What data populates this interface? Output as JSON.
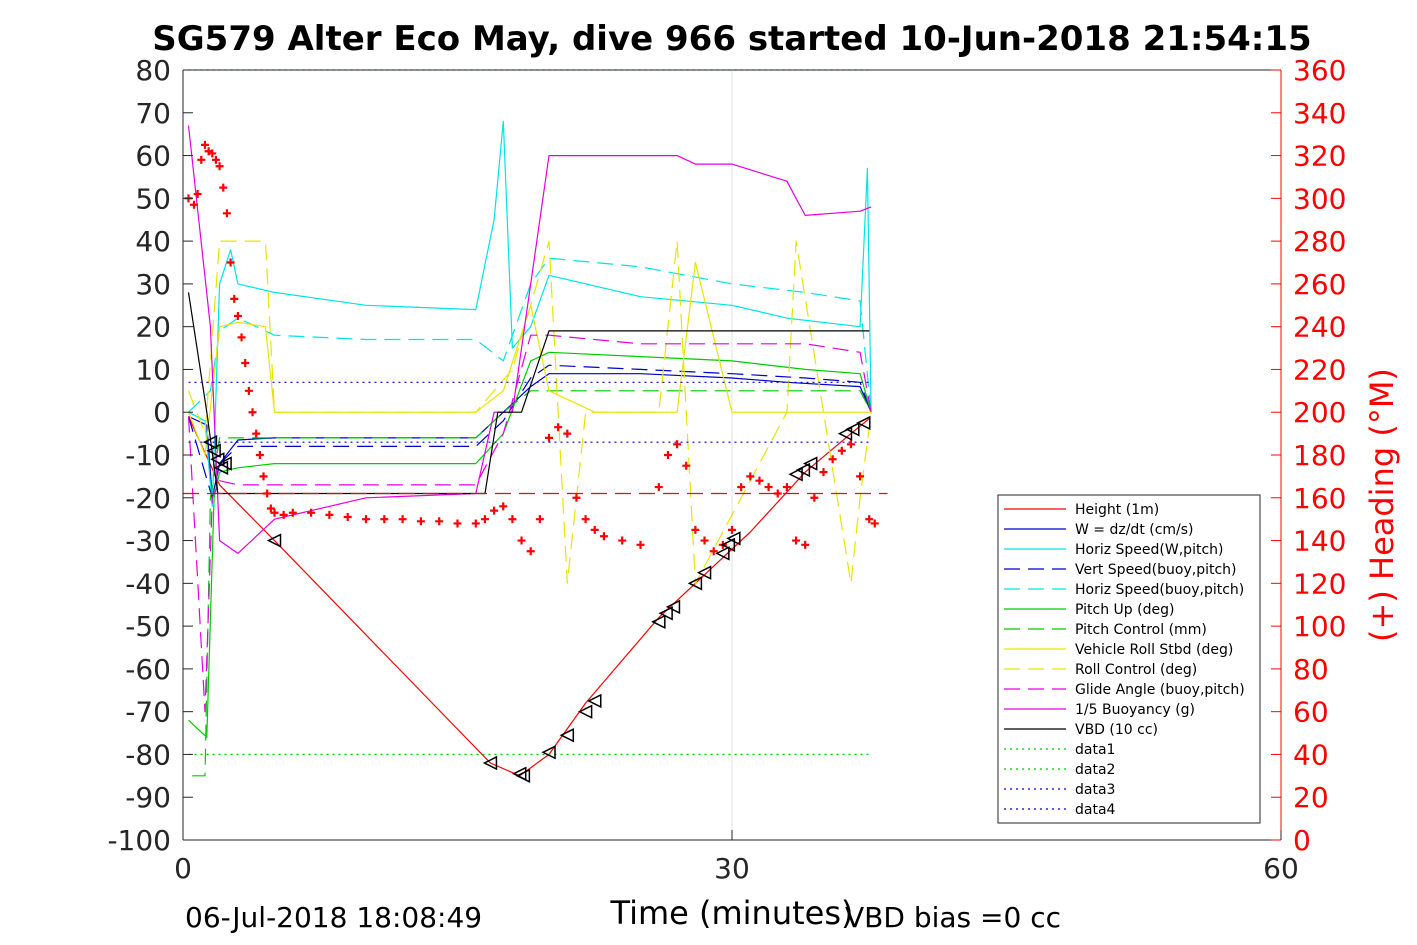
{
  "chart_data": {
    "type": "line",
    "title": "SG579 Alter Eco May, dive 966 started 10-Jun-2018 21:54:15",
    "xlabel": "Time (minutes)",
    "ylabel": "",
    "y2label": "(+) Heading (°M)",
    "xlim": [
      0,
      60
    ],
    "ylim": [
      -100,
      80
    ],
    "y2lim": [
      0,
      360
    ],
    "xticks": [
      "0",
      "30",
      "60"
    ],
    "yticks": [
      "80",
      "70",
      "60",
      "50",
      "40",
      "30",
      "20",
      "10",
      "0",
      "-10",
      "-20",
      "-30",
      "-40",
      "-50",
      "-60",
      "-70",
      "-80",
      "-90",
      "-100"
    ],
    "y2ticks": [
      "360",
      "340",
      "320",
      "300",
      "280",
      "260",
      "240",
      "220",
      "200",
      "180",
      "160",
      "140",
      "120",
      "100",
      "80",
      "60",
      "40",
      "20",
      "0"
    ],
    "grid": "x only",
    "legend_position": "lower-right",
    "footer_left": "06-Jul-2018 18:08:49",
    "footer_right": "VBD bias =0 cc",
    "colors": {
      "heading": "#ff0000",
      "y2axis": "#ff0000"
    },
    "series": [
      {
        "name": "Height (1m)",
        "color": "#ff0000",
        "style": "solid",
        "x": [
          0.3,
          2.0,
          5.0,
          16.8,
          18.4,
          20.0,
          22.0,
          26.0,
          28.5,
          31.0,
          34.0,
          36.5,
          37.5
        ],
        "y": [
          -1.0,
          -17.0,
          -30.0,
          -82.0,
          -85.0,
          -80.0,
          -68.0,
          -48.0,
          -38.0,
          -28.0,
          -14.0,
          -5.0,
          -1.5
        ]
      },
      {
        "name": "W = dz/dt (cm/s)",
        "color": "#0000cc",
        "style": "solid",
        "x": [
          0.3,
          1.3,
          1.6,
          2.0,
          3.0,
          5.0,
          10.0,
          16.0,
          17.0,
          18.0,
          19.0,
          20.0,
          25.0,
          30.0,
          33.0,
          37.0,
          37.6
        ],
        "y": [
          -1.0,
          -3.0,
          -20.0,
          -12.0,
          -6.5,
          -6.0,
          -6.0,
          -6.0,
          -2.0,
          2.0,
          6.0,
          9.0,
          9.0,
          8.0,
          7.0,
          6.0,
          0.0
        ]
      },
      {
        "name": "Horiz Speed(W,pitch)",
        "color": "#00e5e5",
        "style": "solid",
        "x": [
          0.3,
          1.2,
          1.6,
          2.0,
          2.6,
          3.0,
          5.0,
          10.0,
          16.0,
          17.0,
          17.5,
          18.0,
          19.0,
          20.0,
          25.0,
          30.0,
          33.0,
          37.0,
          37.4,
          37.6
        ],
        "y": [
          0.0,
          -2.0,
          -22.0,
          30.0,
          38.0,
          30.0,
          28.0,
          25.0,
          24.0,
          45.0,
          68.0,
          15.0,
          20.0,
          32.0,
          27.0,
          25.0,
          22.0,
          20.0,
          57.0,
          0.0
        ]
      },
      {
        "name": "Vert Speed(buoy,pitch)",
        "color": "#0000cc",
        "style": "dashed",
        "x": [
          0.3,
          1.6,
          2.0,
          3.0,
          10.0,
          16.0,
          17.5,
          19.0,
          20.0,
          25.0,
          30.0,
          34.0,
          37.0,
          37.6
        ],
        "y": [
          -1.0,
          -20.0,
          -12.0,
          -8.0,
          -8.0,
          -8.0,
          -2.0,
          8.0,
          11.0,
          10.0,
          9.0,
          8.0,
          7.0,
          0.0
        ]
      },
      {
        "name": "Horiz Speed(buoy,pitch)",
        "color": "#00e5e5",
        "style": "dashed",
        "x": [
          0.3,
          1.5,
          2.0,
          3.0,
          5.0,
          10.0,
          16.0,
          17.5,
          19.0,
          20.0,
          25.0,
          30.0,
          34.0,
          37.0,
          37.6
        ],
        "y": [
          0.0,
          5.0,
          19.0,
          22.0,
          18.0,
          17.0,
          17.0,
          12.0,
          30.0,
          36.0,
          34.0,
          30.0,
          28.0,
          26.0,
          0.0
        ]
      },
      {
        "name": "Pitch Up (deg)",
        "color": "#00cc00",
        "style": "solid",
        "x": [
          0.3,
          1.3,
          1.7,
          2.0,
          3.0,
          5.0,
          10.0,
          16.0,
          17.5,
          19.0,
          20.0,
          25.0,
          30.0,
          34.0,
          37.0,
          37.6
        ],
        "y": [
          -72.0,
          -76.0,
          -20.0,
          -14.0,
          -13.0,
          -12.0,
          -12.0,
          -12.0,
          -5.0,
          12.0,
          14.0,
          13.0,
          12.0,
          10.0,
          9.0,
          0.0
        ]
      },
      {
        "name": "Pitch Control (mm)",
        "color": "#00cc00",
        "style": "dashed",
        "x": [
          0.5,
          1.2,
          1.5,
          2.0,
          3.0,
          10.0,
          16.0,
          17.5,
          19.0,
          25.0,
          30.0,
          37.0,
          37.6
        ],
        "y": [
          -85.0,
          -85.0,
          -20.0,
          -6.0,
          -6.0,
          -6.0,
          -6.0,
          0.0,
          5.0,
          5.0,
          5.0,
          5.0,
          0.0
        ]
      },
      {
        "name": "Vehicle Roll Stbd (deg)",
        "color": "#e6e600",
        "style": "solid",
        "x": [
          0.3,
          1.2,
          2.0,
          3.0,
          4.5,
          5.0,
          10.0,
          16.0,
          17.5,
          19.0,
          20.0,
          22.5,
          27.0,
          28.0,
          30.0,
          33.0,
          36.0,
          37.6
        ],
        "y": [
          0.0,
          -10.0,
          20.0,
          21.0,
          20.0,
          0.0,
          0.0,
          0.0,
          5.0,
          25.0,
          5.0,
          0.0,
          0.0,
          35.0,
          0.0,
          0.0,
          0.0,
          0.0
        ]
      },
      {
        "name": "Roll Control (deg)",
        "color": "#e6e600",
        "style": "dashed",
        "x": [
          0.3,
          1.2,
          2.0,
          4.5,
          5.0,
          10.0,
          16.0,
          18.0,
          20.0,
          21.0,
          22.0,
          26.0,
          27.0,
          28.0,
          33.0,
          33.5,
          36.5,
          37.0,
          37.6
        ],
        "y": [
          5.0,
          -5.0,
          40.0,
          40.0,
          0.0,
          0.0,
          0.0,
          10.0,
          40.0,
          -40.0,
          0.0,
          0.0,
          40.0,
          -40.0,
          0.0,
          40.0,
          -40.0,
          -20.0,
          0.0
        ]
      },
      {
        "name": "Glide Angle (buoy,pitch)",
        "color": "#e600e6",
        "style": "dashed",
        "x": [
          0.3,
          1.2,
          1.6,
          2.0,
          3.0,
          10.0,
          16.0,
          17.5,
          19.0,
          20.0,
          25.0,
          30.0,
          34.0,
          37.0,
          37.6
        ],
        "y": [
          -1.0,
          -70.0,
          -20.0,
          -16.0,
          -17.0,
          -17.0,
          -17.0,
          -5.0,
          18.0,
          18.0,
          16.0,
          16.0,
          16.0,
          14.0,
          0.0
        ]
      },
      {
        "name": "1/5 Buoyancy (g)",
        "color": "#e600e6",
        "style": "solid",
        "x": [
          0.3,
          1.5,
          2.0,
          3.0,
          5.0,
          10.0,
          16.0,
          17.0,
          18.0,
          20.0,
          27.0,
          28.0,
          30.0,
          33.0,
          34.0,
          37.0,
          37.6
        ],
        "y": [
          67.0,
          20.0,
          -30.0,
          -33.0,
          -25.0,
          -20.0,
          -19.0,
          0.0,
          0.0,
          60.0,
          60.0,
          58.0,
          58.0,
          54.0,
          46.0,
          47.0,
          48.0
        ]
      },
      {
        "name": "VBD (10 cc)",
        "color": "#000000",
        "style": "solid",
        "x": [
          0.3,
          1.3,
          1.9,
          16.5,
          17.2,
          18.5,
          20.0,
          37.5
        ],
        "y": [
          28.0,
          0.0,
          -19.0,
          -19.0,
          0.0,
          0.0,
          19.0,
          19.0
        ]
      },
      {
        "name": "data1",
        "color": "#00cc00",
        "style": "dotted",
        "x": [
          0.3,
          37.5
        ],
        "y": [
          -80.0,
          -80.0
        ]
      },
      {
        "name": "data2",
        "color": "#00cc00",
        "style": "dotted",
        "x": [
          0.3,
          37.5
        ],
        "y": [
          80.0,
          80.0
        ]
      },
      {
        "name": "data3",
        "color": "#0000cc",
        "style": "dotted",
        "x": [
          0.3,
          37.5
        ],
        "y": [
          7.0,
          7.0
        ]
      },
      {
        "name": "data4",
        "color": "#0000cc",
        "style": "dotted",
        "x": [
          0.3,
          37.5
        ],
        "y": [
          -7.0,
          -7.0
        ]
      }
    ],
    "extras": {
      "heading_reference": {
        "color": "#ff0000",
        "style": "dashed",
        "y2": 162
      },
      "heading_points": {
        "marker": "+",
        "color": "#ff0000",
        "x": [
          0.3,
          0.6,
          0.8,
          1.0,
          1.2,
          1.4,
          1.6,
          1.8,
          2.0,
          2.2,
          2.4,
          2.6,
          2.8,
          3.0,
          3.2,
          3.4,
          3.6,
          3.8,
          4.0,
          4.2,
          4.4,
          4.6,
          4.8,
          5.0,
          5.5,
          6.0,
          7.0,
          8.0,
          9.0,
          10.0,
          11.0,
          12.0,
          13.0,
          14.0,
          15.0,
          16.0,
          16.5,
          17.0,
          17.5,
          18.0,
          18.5,
          19.0,
          19.5,
          20.0,
          20.5,
          21.0,
          21.5,
          22.0,
          22.5,
          23.0,
          24.0,
          25.0,
          26.0,
          26.5,
          27.0,
          27.5,
          28.0,
          28.5,
          29.0,
          29.5,
          30.0,
          30.5,
          31.0,
          31.5,
          32.0,
          32.5,
          33.0,
          33.5,
          34.0,
          34.5,
          35.0,
          35.5,
          36.0,
          36.5,
          37.0,
          37.5,
          37.8
        ],
        "y2": [
          300,
          297,
          302,
          318,
          325,
          322,
          321,
          318,
          315,
          305,
          293,
          270,
          253,
          245,
          235,
          223,
          210,
          200,
          190,
          180,
          170,
          162,
          155,
          153,
          152,
          153,
          153,
          152,
          151,
          150,
          150,
          150,
          149,
          149,
          148,
          148,
          150,
          154,
          156,
          150,
          140,
          135,
          150,
          188,
          193,
          190,
          160,
          150,
          145,
          142,
          140,
          138,
          165,
          180,
          185,
          175,
          145,
          140,
          135,
          138,
          145,
          165,
          170,
          168,
          165,
          162,
          165,
          140,
          138,
          160,
          172,
          178,
          182,
          185,
          170,
          150,
          148
        ]
      },
      "triangle_markers": {
        "marker": "triangle-left",
        "color": "#000000",
        "x": [
          1.5,
          1.7,
          1.9,
          2.1,
          2.3,
          5.0,
          16.8,
          18.4,
          18.6,
          20.0,
          21.0,
          22.0,
          22.5,
          26.0,
          26.4,
          26.8,
          28.0,
          28.5,
          29.5,
          29.8,
          30.1,
          33.5,
          33.9,
          34.3,
          36.2,
          36.6,
          37.2
        ],
        "y": [
          -7.0,
          -9.0,
          -11.0,
          -13.0,
          -12.0,
          -30.0,
          -82.0,
          -84.5,
          -85.0,
          -79.5,
          -75.5,
          -70.0,
          -67.5,
          -49.0,
          -47.0,
          -45.5,
          -40.0,
          -37.5,
          -33.0,
          -31.0,
          -29.5,
          -14.5,
          -13.5,
          -12.0,
          -5.0,
          -4.0,
          -2.5
        ]
      }
    },
    "legend": [
      "Height (1m)",
      "W = dz/dt (cm/s)",
      "Horiz Speed(W,pitch)",
      "Vert Speed(buoy,pitch)",
      "Horiz Speed(buoy,pitch)",
      "Pitch Up (deg)",
      "Pitch Control (mm)",
      "Vehicle Roll Stbd (deg)",
      "Roll Control (deg)",
      "Glide Angle (buoy,pitch)",
      "1/5 Buoyancy (g)",
      "VBD (10 cc)",
      "data1",
      "data2",
      "data3",
      "data4"
    ]
  }
}
